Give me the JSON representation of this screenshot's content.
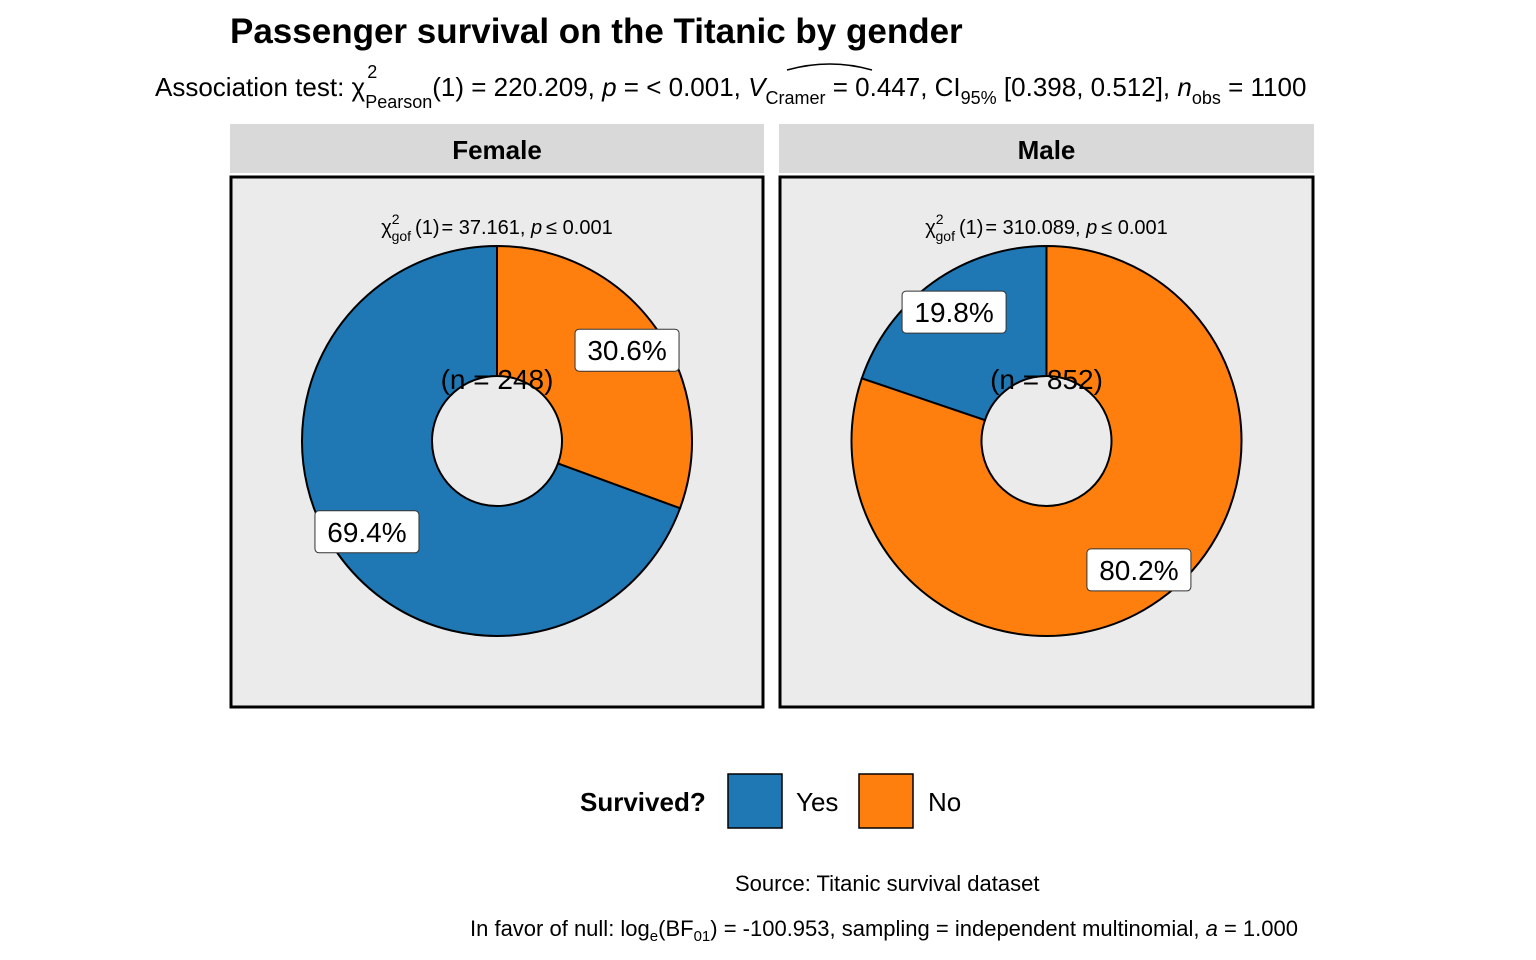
{
  "chart_data": {
    "type": "pie",
    "title": "Passenger survival on the Titanic by gender",
    "subtitle": {
      "prefix": "Association test: ",
      "chi": "χ",
      "chi_sup": "2",
      "chi_sub": "Pearson",
      "df": "(1) = 220.209, ",
      "p_sym": "p",
      "p_rest": " = < 0.001, ",
      "v_sym": "V",
      "v_sub": "Cramer",
      "v_rest": " = 0.447, CI",
      "ci_sub": "95%",
      "ci_rest": " [0.398, 0.512], ",
      "n_sym": "n",
      "n_sub": "obs",
      "n_rest": " = 1100"
    },
    "categories": [
      "Yes",
      "No"
    ],
    "colors": {
      "Yes": "#1F77B4",
      "No": "#FF7F0E"
    },
    "facets": [
      {
        "strip": "Female",
        "test": {
          "chi": "χ",
          "sup": "2",
          "sub": "gof",
          "df": "(1)",
          "stat": "= 37.161, ",
          "p_sym": "p",
          "p_rest": "≤ 0.001"
        },
        "n_label": "(n = 248)",
        "values": [
          69.4,
          30.6
        ],
        "labels": [
          "69.4%",
          "30.6%"
        ]
      },
      {
        "strip": "Male",
        "test": {
          "chi": "χ",
          "sup": "2",
          "sub": "gof",
          "df": "(1)",
          "stat": "= 310.089, ",
          "p_sym": "p",
          "p_rest": "≤ 0.001"
        },
        "n_label": "(n = 852)",
        "values": [
          19.8,
          80.2
        ],
        "labels": [
          "19.8%",
          "80.2%"
        ]
      }
    ],
    "legend": {
      "title": "Survived?",
      "position": "bottom",
      "entries": [
        "Yes",
        "No"
      ]
    },
    "caption": {
      "line1": "Source: Titanic survival dataset",
      "line2_prefix": "In favor of null: log",
      "line2_e": "e",
      "line2_bf": "(BF",
      "line2_01": "01",
      "line2_rest": ") = -100.953, sampling = independent multinomial, ",
      "line2_a": "a",
      "line2_end": " = 1.000"
    },
    "panel_background": "#EBEBEB",
    "strip_background": "#D9D9D9"
  }
}
